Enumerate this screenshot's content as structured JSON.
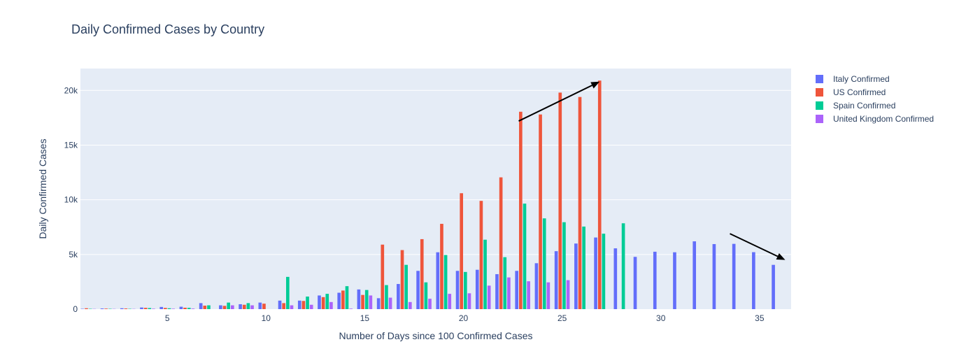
{
  "chart_data": {
    "type": "bar",
    "title": "Daily Confirmed Cases by Country",
    "xlabel": "Number of Days since 100 Confirmed Cases",
    "ylabel": "Daily Confirmed Cases",
    "xlim": [
      0.6,
      36.6
    ],
    "ylim": [
      0,
      22000
    ],
    "x_ticks": [
      5,
      10,
      15,
      20,
      25,
      30,
      35
    ],
    "y_ticks": [
      0,
      5000,
      10000,
      15000,
      20000
    ],
    "y_tick_labels": [
      "0",
      "5k",
      "10k",
      "15k",
      "20k"
    ],
    "grid": true,
    "legend_position": "top-right",
    "plot_background": "#E5ECF6",
    "x": [
      1,
      2,
      3,
      4,
      5,
      6,
      7,
      8,
      9,
      10,
      11,
      12,
      13,
      14,
      15,
      16,
      17,
      18,
      19,
      20,
      21,
      22,
      23,
      24,
      25,
      26,
      27,
      28,
      29,
      30,
      31,
      32,
      33,
      34,
      35,
      36
    ],
    "series": [
      {
        "name": "Italy Confirmed",
        "color": "#636EFA",
        "values": [
          30,
          60,
          80,
          150,
          200,
          220,
          550,
          350,
          450,
          600,
          780,
          780,
          1250,
          1500,
          1800,
          1000,
          2300,
          3500,
          5200,
          3500,
          3600,
          3200,
          3500,
          4200,
          5300,
          6000,
          6550,
          5560,
          4780,
          5250,
          5200,
          6200,
          5950,
          5970,
          5210,
          4050
        ]
      },
      {
        "name": "US Confirmed",
        "color": "#EF553B",
        "values": [
          80,
          50,
          60,
          120,
          110,
          130,
          320,
          300,
          400,
          500,
          550,
          750,
          1100,
          1700,
          1300,
          5900,
          5400,
          6400,
          7800,
          10600,
          9900,
          12050,
          18050,
          17800,
          19800,
          19400,
          20900,
          null,
          null,
          null,
          null,
          null,
          null,
          null,
          null,
          null
        ]
      },
      {
        "name": "Spain Confirmed",
        "color": "#00CC96",
        "values": [
          30,
          30,
          30,
          100,
          80,
          120,
          350,
          600,
          550,
          null,
          2950,
          1150,
          1400,
          2100,
          1750,
          2200,
          4050,
          2450,
          4950,
          3400,
          6350,
          4750,
          9650,
          8300,
          7950,
          7550,
          6900,
          7850,
          null,
          null,
          null,
          null,
          null,
          null,
          null,
          null
        ]
      },
      {
        "name": "United Kingdom Confirmed",
        "color": "#AB63FA",
        "values": [
          20,
          20,
          20,
          40,
          40,
          50,
          null,
          350,
          350,
          null,
          350,
          400,
          650,
          50,
          1250,
          1050,
          650,
          950,
          1400,
          1450,
          2150,
          2900,
          2550,
          2450,
          2650,
          null,
          null,
          null,
          null,
          null,
          null,
          null,
          null,
          null,
          null,
          null
        ]
      }
    ],
    "annotations": [
      {
        "type": "arrow",
        "from": [
          22.8,
          17200
        ],
        "to": [
          26.9,
          20800
        ]
      },
      {
        "type": "arrow",
        "from": [
          33.5,
          6900
        ],
        "to": [
          36.3,
          4500
        ]
      }
    ]
  }
}
